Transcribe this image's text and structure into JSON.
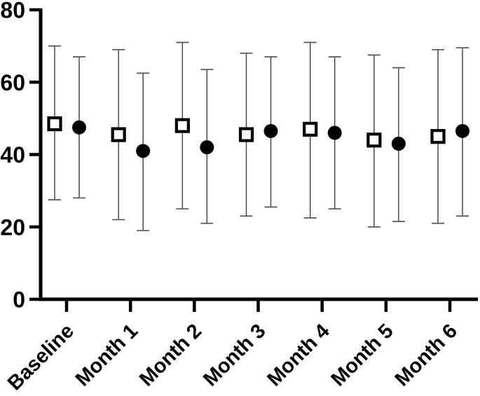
{
  "figure": {
    "background": "#ffffff",
    "axis_color": "#000000",
    "whisker_color": "#404040",
    "cap_color": "#555555"
  },
  "chart_data": {
    "type": "scatter",
    "subtype": "mean-with-error-bars",
    "title": "",
    "xlabel": "",
    "ylabel": "",
    "grid": false,
    "legend_position": "none",
    "x_tick_label_rotation_deg": 45,
    "categories": [
      "Baseline",
      "Month 1",
      "Month 2",
      "Month 3",
      "Month 4",
      "Month 5",
      "Month 6"
    ],
    "yticks": [
      0,
      20,
      40,
      60,
      80
    ],
    "ylim": [
      0,
      80
    ],
    "series": [
      {
        "name": "open-square-series",
        "marker": "open-square",
        "marker_stroke": "#000000",
        "marker_fill": "#ffffff",
        "means": [
          48.5,
          45.5,
          48.0,
          45.5,
          47.0,
          44.0,
          45.0
        ],
        "upper": [
          70.0,
          69.0,
          71.0,
          68.0,
          71.0,
          67.5,
          69.0
        ],
        "lower": [
          27.5,
          22.0,
          25.0,
          23.0,
          22.5,
          20.0,
          21.0
        ]
      },
      {
        "name": "filled-circle-series",
        "marker": "filled-circle",
        "marker_stroke": "#000000",
        "marker_fill": "#000000",
        "means": [
          47.5,
          41.0,
          42.0,
          46.5,
          46.0,
          43.0,
          46.5
        ],
        "upper": [
          67.0,
          62.5,
          63.5,
          67.0,
          67.0,
          64.0,
          69.5
        ],
        "lower": [
          28.0,
          19.0,
          21.0,
          25.5,
          25.0,
          21.5,
          23.0
        ]
      }
    ]
  }
}
